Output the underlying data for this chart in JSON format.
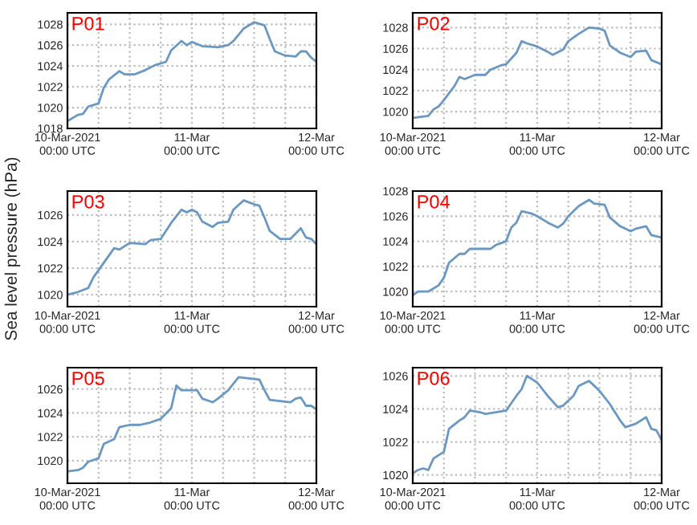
{
  "chart_data": [
    {
      "type": "line",
      "annotations": [
        "P01"
      ],
      "xlim": [
        "2021-03-10T00:00",
        "2021-03-12T00:00"
      ],
      "ylim": [
        1018,
        1029.1
      ],
      "yticks": [
        1018,
        1020,
        1022,
        1024,
        1026,
        1028
      ],
      "xticks": [
        {
          "value": "2021-03-10T00:00",
          "label": "10-Mar-2021\n00:00 UTC"
        },
        {
          "value": "2021-03-10T06:00",
          "label": null
        },
        {
          "value": "2021-03-10T12:00",
          "label": null
        },
        {
          "value": "2021-03-10T18:00",
          "label": null
        },
        {
          "value": "2021-03-11T00:00",
          "label": "11-Mar\n00:00 UTC"
        },
        {
          "value": "2021-03-11T06:00",
          "label": null
        },
        {
          "value": "2021-03-11T12:00",
          "label": null
        },
        {
          "value": "2021-03-11T18:00",
          "label": null
        },
        {
          "value": "2021-03-12T00:00",
          "label": "12-Mar\n00:00 UTC"
        }
      ],
      "grid": true,
      "legend": false,
      "series": [
        {
          "color": "#6a98c4",
          "x": [
            "2021-03-10T00:00",
            "2021-03-10T02:00",
            "2021-03-10T03:00",
            "2021-03-10T04:00",
            "2021-03-10T06:00",
            "2021-03-10T07:00",
            "2021-03-10T08:00",
            "2021-03-10T10:00",
            "2021-03-10T11:00",
            "2021-03-10T13:00",
            "2021-03-10T15:00",
            "2021-03-10T17:00",
            "2021-03-10T19:00",
            "2021-03-10T20:00",
            "2021-03-10T22:00",
            "2021-03-10T23:00",
            "2021-03-11T00:00",
            "2021-03-11T02:00",
            "2021-03-11T05:00",
            "2021-03-11T07:00",
            "2021-03-11T08:00",
            "2021-03-11T10:00",
            "2021-03-11T12:00",
            "2021-03-11T14:00",
            "2021-03-11T15:00",
            "2021-03-11T16:00",
            "2021-03-11T18:00",
            "2021-03-11T20:00",
            "2021-03-11T21:00",
            "2021-03-11T22:00",
            "2021-03-11T23:00",
            "2021-03-12T00:00"
          ],
          "values": [
            1018.7,
            1019.3,
            1019.4,
            1020.1,
            1020.4,
            1021.9,
            1022.7,
            1023.5,
            1023.2,
            1023.2,
            1023.6,
            1024.1,
            1024.4,
            1025.5,
            1026.4,
            1026.0,
            1026.3,
            1025.9,
            1025.8,
            1026.0,
            1026.4,
            1027.6,
            1028.2,
            1027.9,
            1026.6,
            1025.4,
            1025.0,
            1024.9,
            1025.4,
            1025.4,
            1024.8,
            1024.4
          ]
        }
      ]
    },
    {
      "type": "line",
      "annotations": [
        "P02"
      ],
      "xlim": [
        "2021-03-10T00:00",
        "2021-03-12T00:00"
      ],
      "ylim": [
        1018.4,
        1029.4
      ],
      "yticks": [
        1020,
        1022,
        1024,
        1026,
        1028
      ],
      "xticks": [
        {
          "value": "2021-03-10T00:00",
          "label": "10-Mar-2021\n00:00 UTC"
        },
        {
          "value": "2021-03-10T06:00",
          "label": null
        },
        {
          "value": "2021-03-10T12:00",
          "label": null
        },
        {
          "value": "2021-03-10T18:00",
          "label": null
        },
        {
          "value": "2021-03-11T00:00",
          "label": "11-Mar\n00:00 UTC"
        },
        {
          "value": "2021-03-11T06:00",
          "label": null
        },
        {
          "value": "2021-03-11T12:00",
          "label": null
        },
        {
          "value": "2021-03-11T18:00",
          "label": null
        },
        {
          "value": "2021-03-12T00:00",
          "label": "12-Mar\n00:00 UTC"
        }
      ],
      "grid": true,
      "legend": false,
      "series": [
        {
          "color": "#6a98c4",
          "x": [
            "2021-03-10T00:00",
            "2021-03-10T03:00",
            "2021-03-10T04:00",
            "2021-03-10T05:00",
            "2021-03-10T06:00",
            "2021-03-10T08:00",
            "2021-03-10T09:00",
            "2021-03-10T10:00",
            "2021-03-10T12:00",
            "2021-03-10T14:00",
            "2021-03-10T15:00",
            "2021-03-10T17:00",
            "2021-03-10T18:00",
            "2021-03-10T20:00",
            "2021-03-10T21:00",
            "2021-03-10T22:00",
            "2021-03-11T00:00",
            "2021-03-11T02:00",
            "2021-03-11T03:00",
            "2021-03-11T05:00",
            "2021-03-11T06:00",
            "2021-03-11T08:00",
            "2021-03-11T10:00",
            "2021-03-11T12:00",
            "2021-03-11T13:00",
            "2021-03-11T14:00",
            "2021-03-11T16:00",
            "2021-03-11T18:00",
            "2021-03-11T19:00",
            "2021-03-11T21:00",
            "2021-03-11T22:00",
            "2021-03-12T00:00"
          ],
          "values": [
            1019.4,
            1019.6,
            1020.2,
            1020.5,
            1021.1,
            1022.4,
            1023.3,
            1023.1,
            1023.5,
            1023.5,
            1024.0,
            1024.4,
            1024.5,
            1025.6,
            1026.7,
            1026.5,
            1026.2,
            1025.7,
            1025.4,
            1025.9,
            1026.7,
            1027.4,
            1028.0,
            1027.9,
            1027.7,
            1026.3,
            1025.6,
            1025.2,
            1025.7,
            1025.8,
            1024.9,
            1024.5
          ]
        }
      ]
    },
    {
      "type": "line",
      "annotations": [
        "P03"
      ],
      "ylabel": "Sea level pressure (hPa)",
      "xlim": [
        "2021-03-10T00:00",
        "2021-03-12T00:00"
      ],
      "ylim": [
        1019.1,
        1027.8
      ],
      "yticks": [
        1020,
        1022,
        1024,
        1026
      ],
      "xticks": [
        {
          "value": "2021-03-10T00:00",
          "label": "10-Mar-2021\n00:00 UTC"
        },
        {
          "value": "2021-03-10T06:00",
          "label": null
        },
        {
          "value": "2021-03-10T12:00",
          "label": null
        },
        {
          "value": "2021-03-10T18:00",
          "label": null
        },
        {
          "value": "2021-03-11T00:00",
          "label": "11-Mar\n00:00 UTC"
        },
        {
          "value": "2021-03-11T06:00",
          "label": null
        },
        {
          "value": "2021-03-11T12:00",
          "label": null
        },
        {
          "value": "2021-03-11T18:00",
          "label": null
        },
        {
          "value": "2021-03-12T00:00",
          "label": "12-Mar\n00:00 UTC"
        }
      ],
      "grid": true,
      "legend": false,
      "series": [
        {
          "color": "#6a98c4",
          "x": [
            "2021-03-10T00:00",
            "2021-03-10T02:00",
            "2021-03-10T04:00",
            "2021-03-10T05:00",
            "2021-03-10T07:00",
            "2021-03-10T09:00",
            "2021-03-10T10:00",
            "2021-03-10T12:00",
            "2021-03-10T15:00",
            "2021-03-10T16:00",
            "2021-03-10T18:00",
            "2021-03-10T20:00",
            "2021-03-10T22:00",
            "2021-03-10T23:00",
            "2021-03-11T00:00",
            "2021-03-11T01:00",
            "2021-03-11T02:00",
            "2021-03-11T04:00",
            "2021-03-11T05:00",
            "2021-03-11T07:00",
            "2021-03-11T08:00",
            "2021-03-11T10:00",
            "2021-03-11T12:00",
            "2021-03-11T13:00",
            "2021-03-11T14:00",
            "2021-03-11T15:00",
            "2021-03-11T17:00",
            "2021-03-11T19:00",
            "2021-03-11T20:00",
            "2021-03-11T21:00",
            "2021-03-11T22:00",
            "2021-03-11T23:00",
            "2021-03-12T00:00"
          ],
          "values": [
            1020.0,
            1020.2,
            1020.5,
            1021.3,
            1022.4,
            1023.5,
            1023.4,
            1023.9,
            1023.8,
            1024.1,
            1024.2,
            1025.4,
            1026.4,
            1026.2,
            1026.4,
            1026.2,
            1025.5,
            1025.1,
            1025.4,
            1025.5,
            1026.4,
            1027.1,
            1026.8,
            1026.7,
            1025.8,
            1024.8,
            1024.2,
            1024.2,
            1024.6,
            1025.0,
            1024.3,
            1024.2,
            1023.8
          ]
        }
      ]
    },
    {
      "type": "line",
      "annotations": [
        "P04"
      ],
      "xlim": [
        "2021-03-10T00:00",
        "2021-03-12T00:00"
      ],
      "ylim": [
        1018.8,
        1028
      ],
      "yticks": [
        1020,
        1022,
        1024,
        1026,
        1028
      ],
      "xticks": [
        {
          "value": "2021-03-10T00:00",
          "label": "10-Mar-2021\n00:00 UTC"
        },
        {
          "value": "2021-03-10T06:00",
          "label": null
        },
        {
          "value": "2021-03-10T12:00",
          "label": null
        },
        {
          "value": "2021-03-10T18:00",
          "label": null
        },
        {
          "value": "2021-03-11T00:00",
          "label": "11-Mar\n00:00 UTC"
        },
        {
          "value": "2021-03-11T06:00",
          "label": null
        },
        {
          "value": "2021-03-11T12:00",
          "label": null
        },
        {
          "value": "2021-03-11T18:00",
          "label": null
        },
        {
          "value": "2021-03-12T00:00",
          "label": "12-Mar\n00:00 UTC"
        }
      ],
      "grid": true,
      "legend": false,
      "series": [
        {
          "color": "#6a98c4",
          "x": [
            "2021-03-10T00:00",
            "2021-03-10T01:00",
            "2021-03-10T03:00",
            "2021-03-10T05:00",
            "2021-03-10T06:00",
            "2021-03-10T07:00",
            "2021-03-10T09:00",
            "2021-03-10T10:00",
            "2021-03-10T11:00",
            "2021-03-10T13:00",
            "2021-03-10T15:00",
            "2021-03-10T16:00",
            "2021-03-10T18:00",
            "2021-03-10T19:00",
            "2021-03-10T20:00",
            "2021-03-10T21:00",
            "2021-03-10T23:00",
            "2021-03-11T00:00",
            "2021-03-11T02:00",
            "2021-03-11T04:00",
            "2021-03-11T05:00",
            "2021-03-11T06:00",
            "2021-03-11T08:00",
            "2021-03-11T10:00",
            "2021-03-11T11:00",
            "2021-03-11T13:00",
            "2021-03-11T14:00",
            "2021-03-11T16:00",
            "2021-03-11T18:00",
            "2021-03-11T19:00",
            "2021-03-11T21:00",
            "2021-03-11T22:00",
            "2021-03-12T00:00"
          ],
          "values": [
            1019.7,
            1020.0,
            1020.0,
            1020.5,
            1021.1,
            1022.3,
            1023.0,
            1023.0,
            1023.4,
            1023.4,
            1023.4,
            1023.7,
            1024.0,
            1025.1,
            1025.5,
            1026.4,
            1026.2,
            1026.0,
            1025.5,
            1025.1,
            1025.4,
            1026.0,
            1026.8,
            1027.3,
            1027.0,
            1026.9,
            1025.9,
            1025.2,
            1024.8,
            1025.0,
            1025.2,
            1024.5,
            1024.3
          ]
        }
      ]
    },
    {
      "type": "line",
      "annotations": [
        "P05"
      ],
      "xlim": [
        "2021-03-10T00:00",
        "2021-03-12T00:00"
      ],
      "ylim": [
        1018.1,
        1027.8
      ],
      "yticks": [
        1020,
        1022,
        1024,
        1026
      ],
      "xticks": [
        {
          "value": "2021-03-10T00:00",
          "label": "10-Mar-2021\n00:00 UTC"
        },
        {
          "value": "2021-03-10T06:00",
          "label": null
        },
        {
          "value": "2021-03-10T12:00",
          "label": null
        },
        {
          "value": "2021-03-10T18:00",
          "label": null
        },
        {
          "value": "2021-03-11T00:00",
          "label": "11-Mar\n00:00 UTC"
        },
        {
          "value": "2021-03-11T06:00",
          "label": null
        },
        {
          "value": "2021-03-11T12:00",
          "label": null
        },
        {
          "value": "2021-03-11T18:00",
          "label": null
        },
        {
          "value": "2021-03-12T00:00",
          "label": "12-Mar\n00:00 UTC"
        }
      ],
      "grid": true,
      "legend": false,
      "series": [
        {
          "color": "#6a98c4",
          "x": [
            "2021-03-10T00:00",
            "2021-03-10T02:00",
            "2021-03-10T03:00",
            "2021-03-10T04:00",
            "2021-03-10T06:00",
            "2021-03-10T07:00",
            "2021-03-10T09:00",
            "2021-03-10T10:00",
            "2021-03-10T12:00",
            "2021-03-10T14:00",
            "2021-03-10T16:00",
            "2021-03-10T18:00",
            "2021-03-10T20:00",
            "2021-03-10T21:00",
            "2021-03-10T22:00",
            "2021-03-11T00:00",
            "2021-03-11T01:00",
            "2021-03-11T02:00",
            "2021-03-11T04:00",
            "2021-03-11T05:00",
            "2021-03-11T07:00",
            "2021-03-11T09:00",
            "2021-03-11T11:00",
            "2021-03-11T13:00",
            "2021-03-11T14:00",
            "2021-03-11T15:00",
            "2021-03-11T17:00",
            "2021-03-11T19:00",
            "2021-03-11T20:00",
            "2021-03-11T21:00",
            "2021-03-11T22:00",
            "2021-03-11T23:00",
            "2021-03-12T00:00"
          ],
          "values": [
            1019.1,
            1019.2,
            1019.4,
            1019.9,
            1020.2,
            1021.4,
            1021.8,
            1022.8,
            1023.0,
            1023.0,
            1023.2,
            1023.5,
            1024.4,
            1026.3,
            1025.9,
            1025.9,
            1025.9,
            1025.2,
            1024.9,
            1025.2,
            1025.9,
            1027.0,
            1026.9,
            1026.8,
            1025.9,
            1025.1,
            1025.0,
            1024.9,
            1025.2,
            1025.3,
            1024.6,
            1024.6,
            1024.3
          ]
        }
      ]
    },
    {
      "type": "line",
      "annotations": [
        "P06"
      ],
      "xlim": [
        "2021-03-10T00:00",
        "2021-03-12T00:00"
      ],
      "ylim": [
        1019.5,
        1026.5
      ],
      "yticks": [
        1020,
        1022,
        1024,
        1026
      ],
      "xticks": [
        {
          "value": "2021-03-10T00:00",
          "label": "10-Mar-2021\n00:00 UTC"
        },
        {
          "value": "2021-03-10T06:00",
          "label": null
        },
        {
          "value": "2021-03-10T12:00",
          "label": null
        },
        {
          "value": "2021-03-10T18:00",
          "label": null
        },
        {
          "value": "2021-03-11T00:00",
          "label": "11-Mar\n00:00 UTC"
        },
        {
          "value": "2021-03-11T06:00",
          "label": null
        },
        {
          "value": "2021-03-11T12:00",
          "label": null
        },
        {
          "value": "2021-03-11T18:00",
          "label": null
        },
        {
          "value": "2021-03-12T00:00",
          "label": "12-Mar\n00:00 UTC"
        }
      ],
      "grid": true,
      "legend": false,
      "series": [
        {
          "color": "#6a98c4",
          "x": [
            "2021-03-10T00:00",
            "2021-03-10T01:00",
            "2021-03-10T02:00",
            "2021-03-10T03:00",
            "2021-03-10T04:00",
            "2021-03-10T06:00",
            "2021-03-10T07:00",
            "2021-03-10T09:00",
            "2021-03-10T10:00",
            "2021-03-10T11:00",
            "2021-03-10T13:00",
            "2021-03-10T14:00",
            "2021-03-10T16:00",
            "2021-03-10T18:00",
            "2021-03-10T20:00",
            "2021-03-10T21:00",
            "2021-03-10T22:00",
            "2021-03-10T23:00",
            "2021-03-11T00:00",
            "2021-03-11T02:00",
            "2021-03-11T04:00",
            "2021-03-11T05:00",
            "2021-03-11T07:00",
            "2021-03-11T08:00",
            "2021-03-11T10:00",
            "2021-03-11T11:00",
            "2021-03-11T12:00",
            "2021-03-11T14:00",
            "2021-03-11T16:00",
            "2021-03-11T17:00",
            "2021-03-11T19:00",
            "2021-03-11T21:00",
            "2021-03-11T22:00",
            "2021-03-11T23:00",
            "2021-03-12T00:00"
          ],
          "values": [
            1020.1,
            1020.3,
            1020.4,
            1020.3,
            1021.0,
            1021.4,
            1022.8,
            1023.3,
            1023.5,
            1023.9,
            1023.8,
            1023.7,
            1023.8,
            1023.9,
            1024.8,
            1025.2,
            1026.0,
            1025.8,
            1025.6,
            1024.8,
            1024.1,
            1024.2,
            1024.8,
            1025.4,
            1025.7,
            1025.4,
            1025.1,
            1024.3,
            1023.3,
            1022.9,
            1023.1,
            1023.5,
            1022.8,
            1022.7,
            1022.1
          ]
        }
      ]
    }
  ]
}
